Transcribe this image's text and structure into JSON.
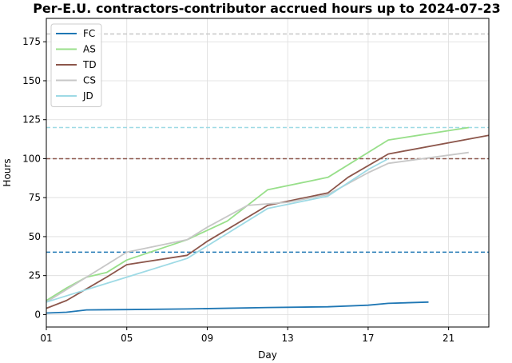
{
  "chart_data": {
    "type": "line",
    "title": "Per-E.U. contractors-contributor accrued hours up to 2024-07-23",
    "xlabel": "Day",
    "ylabel": "Hours",
    "xlim": [
      1,
      23
    ],
    "ylim": [
      -8,
      190
    ],
    "x_ticks": [
      1,
      5,
      9,
      13,
      17,
      21
    ],
    "x_tick_labels": [
      "01",
      "05",
      "09",
      "13",
      "17",
      "21"
    ],
    "y_ticks": [
      0,
      25,
      50,
      75,
      100,
      125,
      150,
      175
    ],
    "y_tick_labels": [
      "0",
      "25",
      "50",
      "75",
      "100",
      "125",
      "150",
      "175"
    ],
    "grid": true,
    "legend_position": "top-left",
    "series": [
      {
        "name": "FC",
        "color": "#1f77b4",
        "x": [
          1,
          2,
          3,
          5,
          8,
          12,
          15,
          17,
          18,
          20
        ],
        "y": [
          1,
          1.5,
          3,
          3.2,
          3.6,
          4.5,
          5,
          6,
          7.2,
          8
        ]
      },
      {
        "name": "AS",
        "color": "#98df8a",
        "x": [
          1,
          2,
          3,
          4,
          5,
          8,
          10,
          12,
          15,
          18,
          22
        ],
        "y": [
          9,
          17,
          24,
          27,
          35,
          48,
          60,
          80,
          88,
          112,
          120
        ]
      },
      {
        "name": "TD",
        "color": "#8c564b",
        "x": [
          1,
          2,
          4,
          5,
          8,
          9,
          12,
          15,
          16,
          18,
          23
        ],
        "y": [
          4,
          9,
          24,
          32,
          38,
          47,
          70,
          78,
          88,
          103,
          115
        ]
      },
      {
        "name": "CS",
        "color": "#c7c7c7",
        "x": [
          1,
          2,
          5,
          8,
          9,
          11,
          13,
          15,
          17,
          18,
          22
        ],
        "y": [
          8,
          16,
          40,
          48,
          56,
          70,
          72,
          77,
          91,
          97,
          104
        ]
      },
      {
        "name": "JD",
        "color": "#9edae5",
        "x": [
          1,
          3,
          5,
          8,
          10,
          12,
          15,
          17,
          18
        ],
        "y": [
          8,
          16,
          24,
          36,
          52,
          68,
          76,
          93,
          100
        ]
      }
    ],
    "reference_lines": [
      {
        "y": 40,
        "color": "#1f77b4"
      },
      {
        "y": 180,
        "color": "#c7c7c7"
      },
      {
        "y": 100,
        "color": "#8c564b"
      },
      {
        "y": 120,
        "color": "#9edae5"
      }
    ]
  }
}
